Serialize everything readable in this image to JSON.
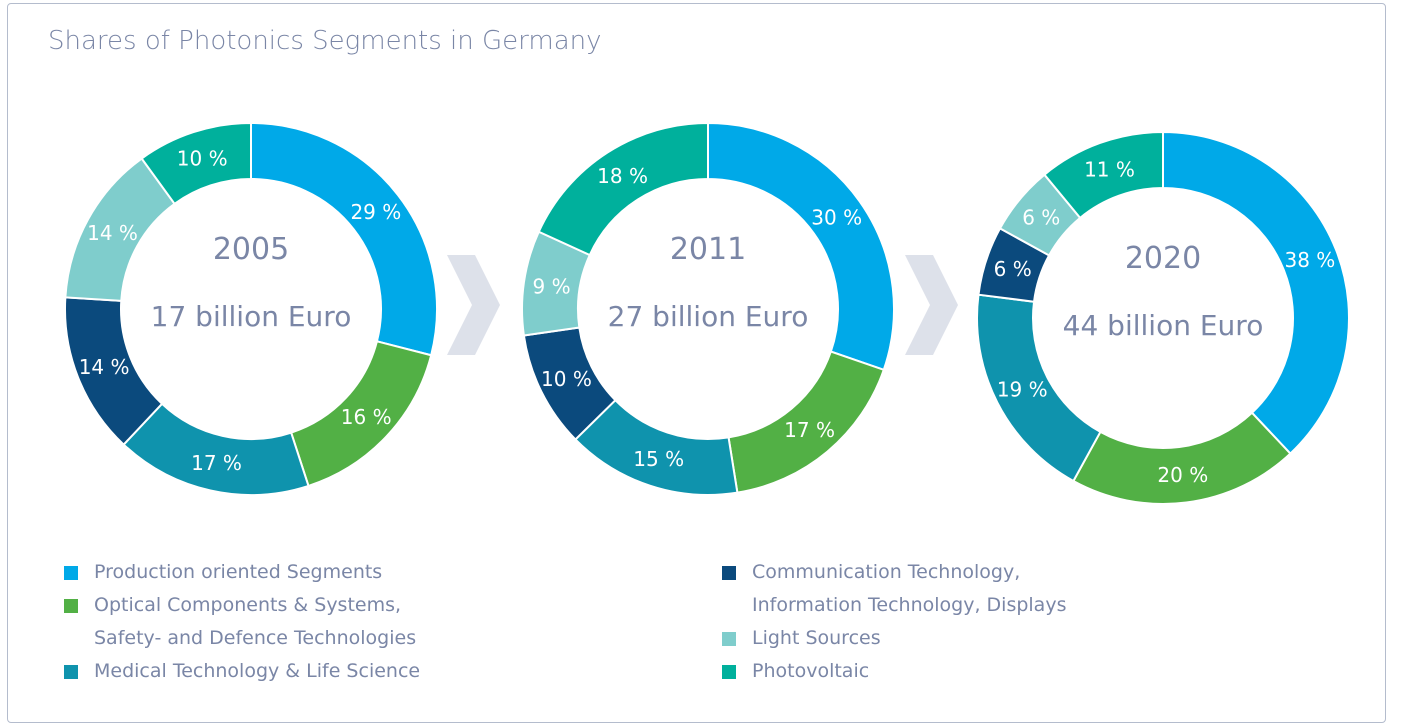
{
  "title": "Shares of Photonics Segments in Germany",
  "legend": [
    {
      "name": "Production oriented Segments",
      "color": "#00a9e8"
    },
    {
      "name": "Optical Components & Systems,\nSafety- and Defence Technologies",
      "color": "#52b045"
    },
    {
      "name": "Medical Technology & Life Science",
      "color": "#0f93ad"
    },
    {
      "name": "Communication Technology,\nInformation Technology, Displays",
      "color": "#0b4a7d"
    },
    {
      "name": "Light Sources",
      "color": "#7fcdcc"
    },
    {
      "name": "Photovoltaic",
      "color": "#00b09c"
    }
  ],
  "chart_data": [
    {
      "type": "donut",
      "center_title": "2005",
      "center_subtitle": "17 billion Euro",
      "values": [
        29,
        16,
        17,
        14,
        14,
        10
      ],
      "value_labels": [
        "29 %",
        "16 %",
        "17 %",
        "14 %",
        "14 %",
        "10 %"
      ]
    },
    {
      "type": "donut",
      "center_title": "2011",
      "center_subtitle": "27 billion Euro",
      "values": [
        30,
        17,
        15,
        10,
        9,
        18
      ],
      "value_labels": [
        "30 %",
        "17 %",
        "15 %",
        "10 %",
        "9 %",
        "18 %"
      ]
    },
    {
      "type": "donut",
      "center_title": "2020",
      "center_subtitle": "44 billion Euro",
      "values": [
        38,
        20,
        19,
        6,
        6,
        11
      ],
      "value_labels": [
        "38 %",
        "20 %",
        "19 %",
        "6 %",
        "6 %",
        "11 %"
      ]
    }
  ]
}
